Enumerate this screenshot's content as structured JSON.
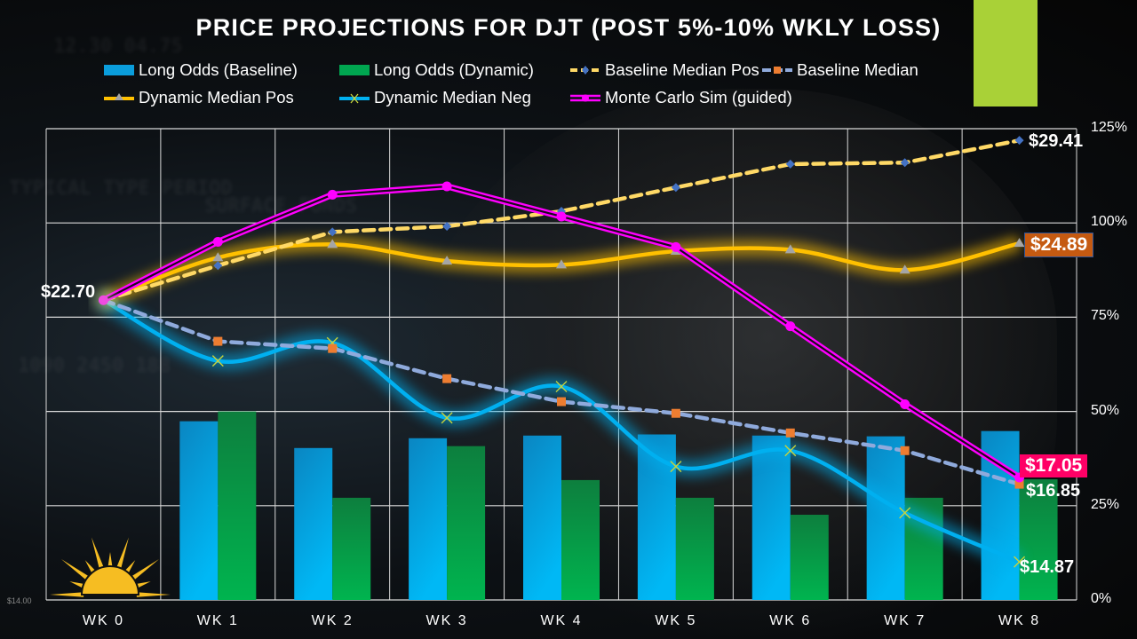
{
  "title": "PRICE PROJECTIONS FOR DJT (POST 5%-10% WKLY LOSS)",
  "background_ticker_text": [
    "TYPICAL TYPE PERIOD",
    "1090 2450 188",
    "SURFACE FUNDS",
    "12.30 04.75"
  ],
  "colors": {
    "long_odds_baseline": "#00aef0",
    "long_odds_dynamic": "#00b050",
    "baseline_median_pos": "#ffd966",
    "baseline_median_pos_marker": "#4472c4",
    "baseline_median": "#8faadc",
    "baseline_median_marker": "#ed7d31",
    "dynamic_median_pos": "#ffc000",
    "dynamic_median_pos_marker": "#a5a5a5",
    "dynamic_median_neg": "#00b0f0",
    "dynamic_median_neg_marker": "#c9d33a",
    "monte_carlo": "#ff00ff",
    "label_orange_box": "#c55a11",
    "label_pink_box": "#ff0066",
    "accent_green_block": "#a9d137",
    "sun_logo": "#f6bd22"
  },
  "chart_data": {
    "type": "bar",
    "combo": "bar+line",
    "title": "PRICE PROJECTIONS FOR DJT (POST 5%-10% WKLY LOSS)",
    "xlabel": "",
    "ylabel": "",
    "categories": [
      "WK 0",
      "WK 1",
      "WK 2",
      "WK 3",
      "WK 4",
      "WK 5",
      "WK 6",
      "WK 7",
      "WK 8"
    ],
    "y_axis_right": {
      "ticks": [
        "0%",
        "25%",
        "50%",
        "75%",
        "100%",
        "125%"
      ],
      "ylim": [
        0,
        125
      ]
    },
    "secondary_axis_min_label": "$14.00",
    "grid": true,
    "legend_position": "top",
    "series": [
      {
        "name": "Long Odds (Baseline)",
        "kind": "bar",
        "color_key": "long_odds_baseline",
        "values": [
          null,
          47.4,
          40.3,
          42.9,
          43.6,
          43.9,
          43.6,
          43.4,
          44.8
        ]
      },
      {
        "name": "Long Odds (Dynamic)",
        "kind": "bar",
        "color_key": "long_odds_dynamic",
        "values": [
          null,
          50.0,
          27.1,
          40.8,
          31.8,
          27.1,
          22.6,
          27.1,
          32.0
        ]
      },
      {
        "name": "Baseline Median Pos",
        "kind": "line",
        "style": "dashed",
        "marker": "diamond",
        "color_key": "baseline_median_pos",
        "marker_color_key": "baseline_median_pos_marker",
        "values": [
          79.5,
          88.7,
          97.6,
          99.1,
          103.1,
          109.4,
          115.6,
          116.0,
          121.9
        ]
      },
      {
        "name": "Baseline Median",
        "kind": "line",
        "style": "dashed",
        "marker": "square",
        "color_key": "baseline_median",
        "marker_color_key": "baseline_median_marker",
        "values": [
          79.5,
          68.6,
          66.7,
          58.7,
          52.6,
          49.5,
          44.3,
          39.6,
          30.7
        ]
      },
      {
        "name": "Dynamic Median Pos",
        "kind": "line",
        "style": "smooth-glow",
        "marker": "triangle",
        "color_key": "dynamic_median_pos",
        "marker_color_key": "dynamic_median_pos_marker",
        "values": [
          79.5,
          90.8,
          94.3,
          89.9,
          88.9,
          92.5,
          92.9,
          87.5,
          94.6
        ]
      },
      {
        "name": "Dynamic Median Neg",
        "kind": "line",
        "style": "smooth-glow",
        "marker": "x",
        "color_key": "dynamic_median_neg",
        "marker_color_key": "dynamic_median_neg_marker",
        "values": [
          79.5,
          63.4,
          68.2,
          48.3,
          56.6,
          35.4,
          39.6,
          23.1,
          10.1
        ]
      },
      {
        "name": "Monte Carlo Sim (guided)",
        "kind": "line",
        "style": "double",
        "marker": "circle",
        "color_key": "monte_carlo",
        "marker_color_key": "monte_carlo",
        "values": [
          79.5,
          95.0,
          107.5,
          109.7,
          101.7,
          93.6,
          72.6,
          51.9,
          32.5
        ]
      }
    ],
    "annotations": [
      {
        "text": "$22.70",
        "series": "start",
        "category": "WK 0",
        "style": "plain"
      },
      {
        "text": "$29.41",
        "series": "Baseline Median Pos",
        "category": "WK 8",
        "style": "plain"
      },
      {
        "text": "$24.89",
        "series": "Dynamic Median Pos",
        "category": "WK 8",
        "style": "box-orange"
      },
      {
        "text": "$17.05",
        "series": "Monte Carlo Sim (guided)",
        "category": "WK 8",
        "style": "box-pink"
      },
      {
        "text": "$16.85",
        "series": "Baseline Median",
        "category": "WK 8",
        "style": "plain"
      },
      {
        "text": "$14.87",
        "series": "Dynamic Median Neg",
        "category": "WK 8",
        "style": "plain"
      }
    ]
  },
  "legend": [
    {
      "label": "Long Odds (Baseline)",
      "icon": "blue-bar-swatch"
    },
    {
      "label": "Long Odds (Dynamic)",
      "icon": "green-bar-swatch"
    },
    {
      "label": "Baseline Median Pos",
      "icon": "dashed-yellow-diamond-line"
    },
    {
      "label": "Baseline Median",
      "icon": "dashed-lightblue-square-line"
    },
    {
      "label": "Dynamic Median Pos",
      "icon": "yellow-triangle-line"
    },
    {
      "label": "Dynamic Median Neg",
      "icon": "blue-x-line"
    },
    {
      "label": "Monte Carlo Sim (guided)",
      "icon": "magenta-double-circle-line"
    }
  ],
  "logo": "sun-logo"
}
